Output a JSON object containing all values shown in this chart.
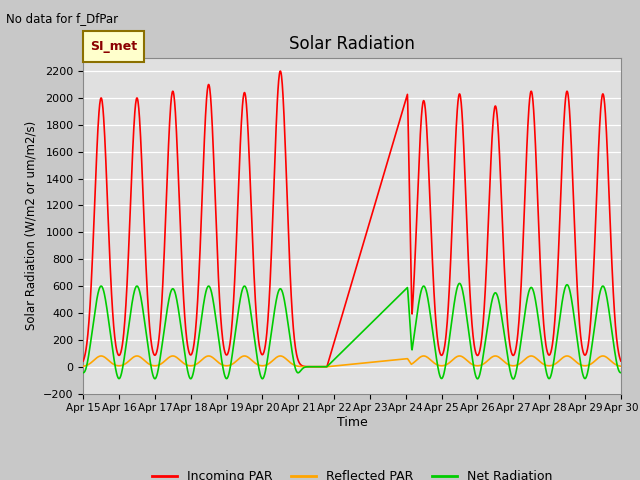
{
  "title": "Solar Radiation",
  "top_left_text": "No data for f_DfPar",
  "legend_box_text": "SI_met",
  "ylabel": "Solar Radiation (W/m2 or um/m2/s)",
  "xlabel": "Time",
  "ylim": [
    -200,
    2300
  ],
  "yticks": [
    -200,
    0,
    200,
    400,
    600,
    800,
    1000,
    1200,
    1400,
    1600,
    1800,
    2000,
    2200
  ],
  "fig_bg_color": "#c8c8c8",
  "plot_bg_color": "#e0e0e0",
  "incoming_color": "#ff0000",
  "reflected_color": "#ffa500",
  "net_color": "#00cc00",
  "line_width": 1.2,
  "days": [
    "Apr 15",
    "Apr 16",
    "Apr 17",
    "Apr 18",
    "Apr 19",
    "Apr 20",
    "Apr 21",
    "Apr 22",
    "Apr 23",
    "Apr 24",
    "Apr 25",
    "Apr 26",
    "Apr 27",
    "Apr 28",
    "Apr 29",
    "Apr 30"
  ],
  "x_tick_positions": [
    0,
    1,
    2,
    3,
    4,
    5,
    6,
    7,
    8,
    9,
    10,
    11,
    12,
    13,
    14,
    15
  ]
}
